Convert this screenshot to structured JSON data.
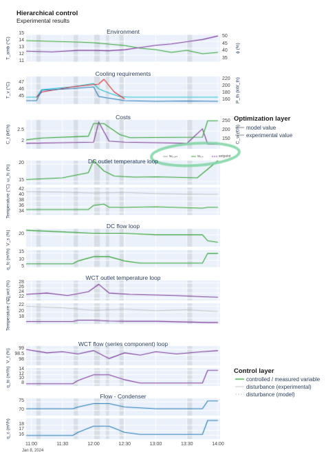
{
  "page": {
    "title": "Hierarchical control",
    "subtitle": "Experimental results"
  },
  "legend_optimization": {
    "title": "Optimization layer",
    "items": [
      "model value",
      "experimental value"
    ]
  },
  "legend_control": {
    "title": "Control layer",
    "items": [
      "controlled / measured variable",
      "disturbance (experimental)",
      "disturbance (model)"
    ]
  },
  "annotation_inline_legend": [
    "wₑ,ₒₚₜ",
    "wₑ,ₛ",
    "setpoint"
  ],
  "x_axis": {
    "ticks": [
      "11:00",
      "11:30",
      "12:00",
      "12:30",
      "13:00",
      "13:30",
      "14:00"
    ],
    "date_label": "Jan 8, 2024",
    "range": [
      "10:55",
      "14:02"
    ]
  },
  "colors": {
    "green": "#2ca02c",
    "purple": "#7b3294",
    "blue": "#1f77b4",
    "red": "#d62728",
    "teal": "#17becf",
    "grey": "#b0b0b0",
    "panel_bg": "#eaf1fb",
    "shade": "#c9cdd3",
    "highlight": "#7fd3a4"
  },
  "chart_data": [
    {
      "type": "line",
      "title": "Environment",
      "ylabel": "T_amb (°C)",
      "ylim": [
        11,
        15
      ],
      "yticks": [
        11,
        12,
        13,
        14,
        15
      ],
      "y2label": "ϕ (%)",
      "y2lim": [
        33,
        52
      ],
      "y2ticks": [
        35,
        40,
        45,
        50
      ],
      "series": [
        {
          "axis": "y",
          "color": "green",
          "x": [
            "10:55",
            "11:20",
            "11:45",
            "12:00",
            "12:15",
            "12:30",
            "12:45",
            "13:00",
            "13:15",
            "13:30",
            "13:45",
            "14:00"
          ],
          "y": [
            14.1,
            14.0,
            13.9,
            13.8,
            13.6,
            13.4,
            13.0,
            12.8,
            12.4,
            12.7,
            12.2,
            12.4
          ]
        },
        {
          "axis": "y2",
          "color": "purple",
          "x": [
            "10:55",
            "11:20",
            "11:45",
            "12:00",
            "12:15",
            "12:30",
            "12:45",
            "13:00",
            "13:15",
            "13:30",
            "13:45",
            "14:00"
          ],
          "y": [
            40.5,
            40.0,
            41.0,
            41.0,
            40.8,
            41.5,
            43.0,
            44.5,
            45.5,
            47.0,
            48.5,
            51.0
          ]
        }
      ]
    },
    {
      "type": "line",
      "title": "Cooling requirements",
      "ylabel": "T_v (°C)",
      "ylim": [
        44,
        48
      ],
      "yticks": [
        45,
        46,
        47
      ],
      "y2label": "P_th (kW_th)",
      "y2lim": [
        150,
        230
      ],
      "y2ticks": [
        160,
        180,
        200,
        220
      ],
      "series": [
        {
          "axis": "y",
          "color": "teal",
          "x": [
            "10:55",
            "11:05",
            "11:10",
            "11:40",
            "12:00",
            "12:05",
            "12:15",
            "12:25",
            "12:35",
            "13:00",
            "14:00"
          ],
          "y": [
            45.0,
            45.0,
            46.1,
            46.5,
            47.0,
            46.2,
            45.6,
            45.1,
            45.0,
            45.0,
            45.0
          ]
        },
        {
          "axis": "y2",
          "color": "red",
          "x": [
            "11:05",
            "11:10",
            "11:40",
            "11:55",
            "12:05",
            "12:10",
            "12:20",
            "12:30"
          ],
          "y": [
            170,
            185,
            200,
            205,
            208,
            222,
            185,
            165
          ]
        },
        {
          "axis": "y2",
          "color": "blue",
          "x": [
            "10:55",
            "11:05",
            "11:10",
            "11:40",
            "12:00",
            "12:05",
            "12:30",
            "13:00",
            "13:30",
            "14:00"
          ],
          "y": [
            160,
            160,
            190,
            195,
            200,
            172,
            160,
            158,
            159,
            158
          ]
        }
      ]
    },
    {
      "type": "line",
      "title": "Costs",
      "ylabel": "C_t (k€/h)",
      "ylim": [
        1.7,
        3.0
      ],
      "yticks": [
        2,
        2.5
      ],
      "y2label": "C_w (€/h)",
      "y2lim": [
        100,
        260
      ],
      "y2ticks": [
        150,
        200,
        250
      ],
      "series": [
        {
          "axis": "y",
          "color": "purple",
          "x": [
            "10:55",
            "11:30",
            "12:00",
            "12:05",
            "12:15",
            "12:30",
            "13:00",
            "13:30",
            "13:45",
            "13:50",
            "14:00"
          ],
          "y": [
            1.95,
            1.98,
            2.0,
            2.9,
            2.05,
            2.0,
            1.98,
            1.95,
            2.6,
            1.92,
            1.9
          ]
        },
        {
          "axis": "y2",
          "color": "green",
          "x": [
            "10:55",
            "11:10",
            "11:55",
            "12:00",
            "12:10",
            "12:25",
            "12:35",
            "13:45",
            "13:50",
            "14:00"
          ],
          "y": [
            150,
            160,
            170,
            240,
            240,
            180,
            162,
            165,
            255,
            255
          ]
        }
      ]
    },
    {
      "type": "line",
      "title": "DC outlet temperature loop",
      "ylabel": "ω_fc (%)",
      "ylim": [
        14,
        21
      ],
      "yticks": [
        15,
        20
      ],
      "series": [
        {
          "color": "green",
          "x": [
            "10:55",
            "11:30",
            "11:55",
            "12:00",
            "12:10",
            "12:20",
            "12:40",
            "13:00",
            "13:40",
            "13:50",
            "14:00"
          ],
          "y": [
            15.5,
            16.0,
            17.5,
            21.0,
            18.0,
            16.5,
            16.2,
            16.3,
            16.0,
            18.5,
            21.0
          ]
        }
      ]
    },
    {
      "type": "line",
      "title": "",
      "ylabel": "Temperature (°C)",
      "ylim": [
        33,
        43
      ],
      "yticks": [
        34,
        36,
        38,
        40,
        42
      ],
      "series": [
        {
          "color": "grey",
          "x": [
            "10:55",
            "11:30",
            "12:00",
            "12:30",
            "13:00",
            "13:30",
            "14:00"
          ],
          "y": [
            41.5,
            41.3,
            41.0,
            41.2,
            40.8,
            40.6,
            40.5
          ]
        },
        {
          "color": "green",
          "x": [
            "10:55",
            "11:55",
            "12:00",
            "12:10",
            "12:15",
            "12:30",
            "13:00",
            "13:45",
            "13:50",
            "14:00"
          ],
          "y": [
            35.0,
            35.0,
            36.5,
            37.0,
            35.8,
            35.8,
            36.0,
            35.5,
            35.8,
            35.8
          ]
        }
      ]
    },
    {
      "type": "line",
      "title": "DC flow loop",
      "ylabel": "V_s (%)",
      "ylim": [
        16,
        22
      ],
      "yticks": [
        20
      ],
      "series": [
        {
          "color": "green",
          "x": [
            "10:55",
            "11:30",
            "12:00",
            "12:30",
            "13:00",
            "13:45",
            "13:50",
            "14:00"
          ],
          "y": [
            21.5,
            21.0,
            20.5,
            20.5,
            20.0,
            20.0,
            18.0,
            17.5
          ]
        }
      ]
    },
    {
      "type": "line",
      "title": "",
      "ylabel": "q_fc (m³/h)",
      "ylim": [
        5,
        17
      ],
      "yticks": [
        5,
        10,
        15
      ],
      "series": [
        {
          "color": "green",
          "x": [
            "10:55",
            "11:40",
            "11:45",
            "12:00",
            "12:15",
            "12:30",
            "12:45",
            "13:00",
            "13:45",
            "13:50",
            "14:00"
          ],
          "y": [
            7.5,
            7.5,
            9.5,
            12.5,
            12.5,
            9.5,
            8.0,
            8.0,
            8.0,
            14.8,
            14.8
          ]
        }
      ]
    },
    {
      "type": "line",
      "title": "WCT outlet temperature loop",
      "ylabel": "ω_wct (%)",
      "ylim": [
        21,
        29
      ],
      "yticks": [
        22,
        24,
        26,
        28
      ],
      "series": [
        {
          "color": "purple",
          "x": [
            "10:55",
            "11:15",
            "11:35",
            "11:55",
            "12:05",
            "12:15",
            "12:35",
            "13:00",
            "13:20",
            "13:45",
            "14:00"
          ],
          "y": [
            23.5,
            24.0,
            23.0,
            24.5,
            27.5,
            24.0,
            23.5,
            23.2,
            23.0,
            22.5,
            22.3
          ]
        }
      ]
    },
    {
      "type": "line",
      "title": "",
      "ylabel": "Temperature (°C)",
      "ylim": [
        16,
        23
      ],
      "yticks": [
        18,
        20,
        22
      ],
      "series": [
        {
          "color": "grey",
          "x": [
            "10:55",
            "11:30",
            "12:00",
            "12:30",
            "13:00",
            "13:30",
            "14:00"
          ],
          "y": [
            22.0,
            21.5,
            20.6,
            21.0,
            20.5,
            20.8,
            20.2
          ]
        },
        {
          "color": "purple",
          "x": [
            "10:55",
            "11:40",
            "11:45",
            "12:00",
            "12:15",
            "12:30",
            "13:00",
            "13:50",
            "14:00"
          ],
          "y": [
            16.8,
            16.8,
            17.3,
            17.3,
            17.0,
            16.9,
            16.9,
            16.5,
            16.5
          ]
        }
      ]
    },
    {
      "type": "line",
      "title": "WCT flow (series component) loop",
      "ylabel": "V_t (%)",
      "ylim": [
        97.6,
        99.3
      ],
      "yticks": [
        98,
        98.5,
        99
      ],
      "series": [
        {
          "color": "purple",
          "x": [
            "10:55",
            "11:15",
            "11:30",
            "11:45",
            "12:00",
            "12:15",
            "12:30",
            "12:45",
            "13:00",
            "13:20",
            "13:45",
            "14:00"
          ],
          "y": [
            99.0,
            98.7,
            98.8,
            98.6,
            98.9,
            98.2,
            98.7,
            98.5,
            98.8,
            98.6,
            98.8,
            98.9
          ]
        }
      ]
    },
    {
      "type": "line",
      "title": "",
      "ylabel": "q_tc (m³/h)",
      "ylim": [
        7,
        15
      ],
      "yticks": [
        8,
        10,
        12,
        14
      ],
      "series": [
        {
          "color": "purple",
          "x": [
            "10:55",
            "11:40",
            "11:45",
            "12:00",
            "12:15",
            "12:30",
            "12:45",
            "13:00",
            "13:45",
            "13:50",
            "14:00"
          ],
          "y": [
            8.0,
            8.0,
            9.5,
            12.0,
            12.0,
            9.8,
            8.3,
            8.3,
            8.3,
            14.0,
            14.0
          ]
        }
      ]
    },
    {
      "type": "line",
      "title": "Flow - Condenser",
      "ylabel": "",
      "ylim": [
        67,
        77
      ],
      "yticks": [
        70,
        75
      ],
      "series": [
        {
          "color": "blue",
          "x": [
            "10:55",
            "11:40",
            "11:45",
            "12:00",
            "12:15",
            "12:30",
            "12:45",
            "13:00",
            "13:45",
            "13:50",
            "14:00"
          ],
          "y": [
            71.0,
            71.0,
            72.0,
            74.0,
            74.0,
            72.0,
            71.5,
            71.0,
            71.0,
            75.5,
            75.5
          ]
        }
      ]
    },
    {
      "type": "line",
      "title": "",
      "ylabel": "q_c (m³/h)",
      "ylim": [
        15.3,
        19.3
      ],
      "yticks": [
        16,
        17,
        18
      ],
      "series": [
        {
          "color": "blue",
          "x": [
            "10:55",
            "11:40",
            "11:45",
            "12:00",
            "12:15",
            "12:30",
            "12:45",
            "13:00",
            "13:45",
            "13:50",
            "14:00"
          ],
          "y": [
            16.0,
            16.0,
            16.6,
            17.8,
            17.8,
            16.6,
            16.2,
            16.2,
            16.2,
            18.9,
            18.9
          ]
        }
      ]
    }
  ]
}
